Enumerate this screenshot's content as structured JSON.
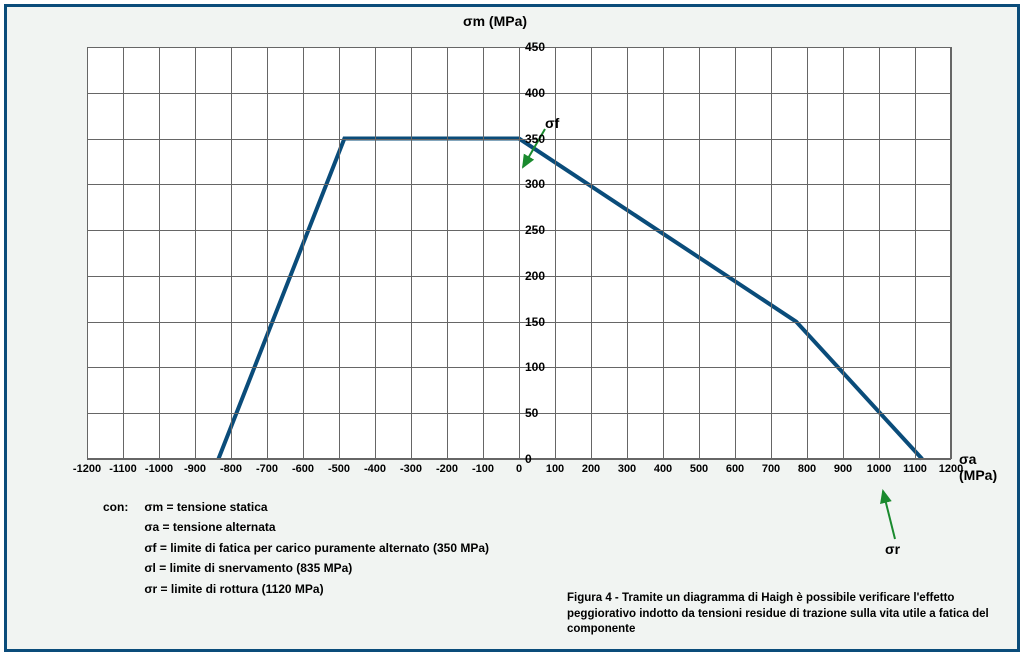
{
  "frame": {
    "border_color": "#0a4c7a",
    "background_color": "#f1f4f2"
  },
  "chart": {
    "type": "line",
    "background_color": "#ffffff",
    "grid_color": "#666666",
    "line_color": "#0a4c7a",
    "line_width": 4,
    "xlim": [
      -1200,
      1200
    ],
    "ylim": [
      0,
      450
    ],
    "xtick_step": 100,
    "ytick_step": 50,
    "xticks": [
      -1200,
      -1100,
      -1000,
      -900,
      -800,
      -700,
      -600,
      -500,
      -400,
      -300,
      -200,
      -100,
      0,
      100,
      200,
      300,
      400,
      500,
      600,
      700,
      800,
      900,
      1000,
      1100,
      1200
    ],
    "yticks": [
      0,
      50,
      100,
      150,
      200,
      250,
      300,
      350,
      400,
      450
    ],
    "ylabel": "σm (MPa)",
    "xlabel": "σa (MPa)",
    "label_fontsize": 14,
    "tick_fontsize": 12,
    "series": [
      {
        "x": -835,
        "y": 0
      },
      {
        "x": -485,
        "y": 350
      },
      {
        "x": 0,
        "y": 350
      },
      {
        "x": 770,
        "y": 150
      },
      {
        "x": 1120,
        "y": 0
      }
    ],
    "annotations": {
      "sigma_f": {
        "label": "σf",
        "arrow_color": "#1a8a2e",
        "target_x": 0,
        "target_y": 350
      },
      "sigma_r": {
        "label": "σr",
        "arrow_color": "#1a8a2e",
        "target_x": 1100
      }
    }
  },
  "legend": {
    "prefix": "con:",
    "items": [
      "σm = tensione statica",
      "σa = tensione alternata",
      "σf = limite di fatica per carico puramente alternato (350 MPa)",
      "σl = limite di snervamento (835 MPa)",
      "σr = limite di rottura (1120 MPa)"
    ]
  },
  "caption": "Figura 4 - Tramite un diagramma di Haigh è possibile verificare l'effetto peggiorativo indotto da tensioni residue di trazione sulla vita utile a fatica del componente"
}
